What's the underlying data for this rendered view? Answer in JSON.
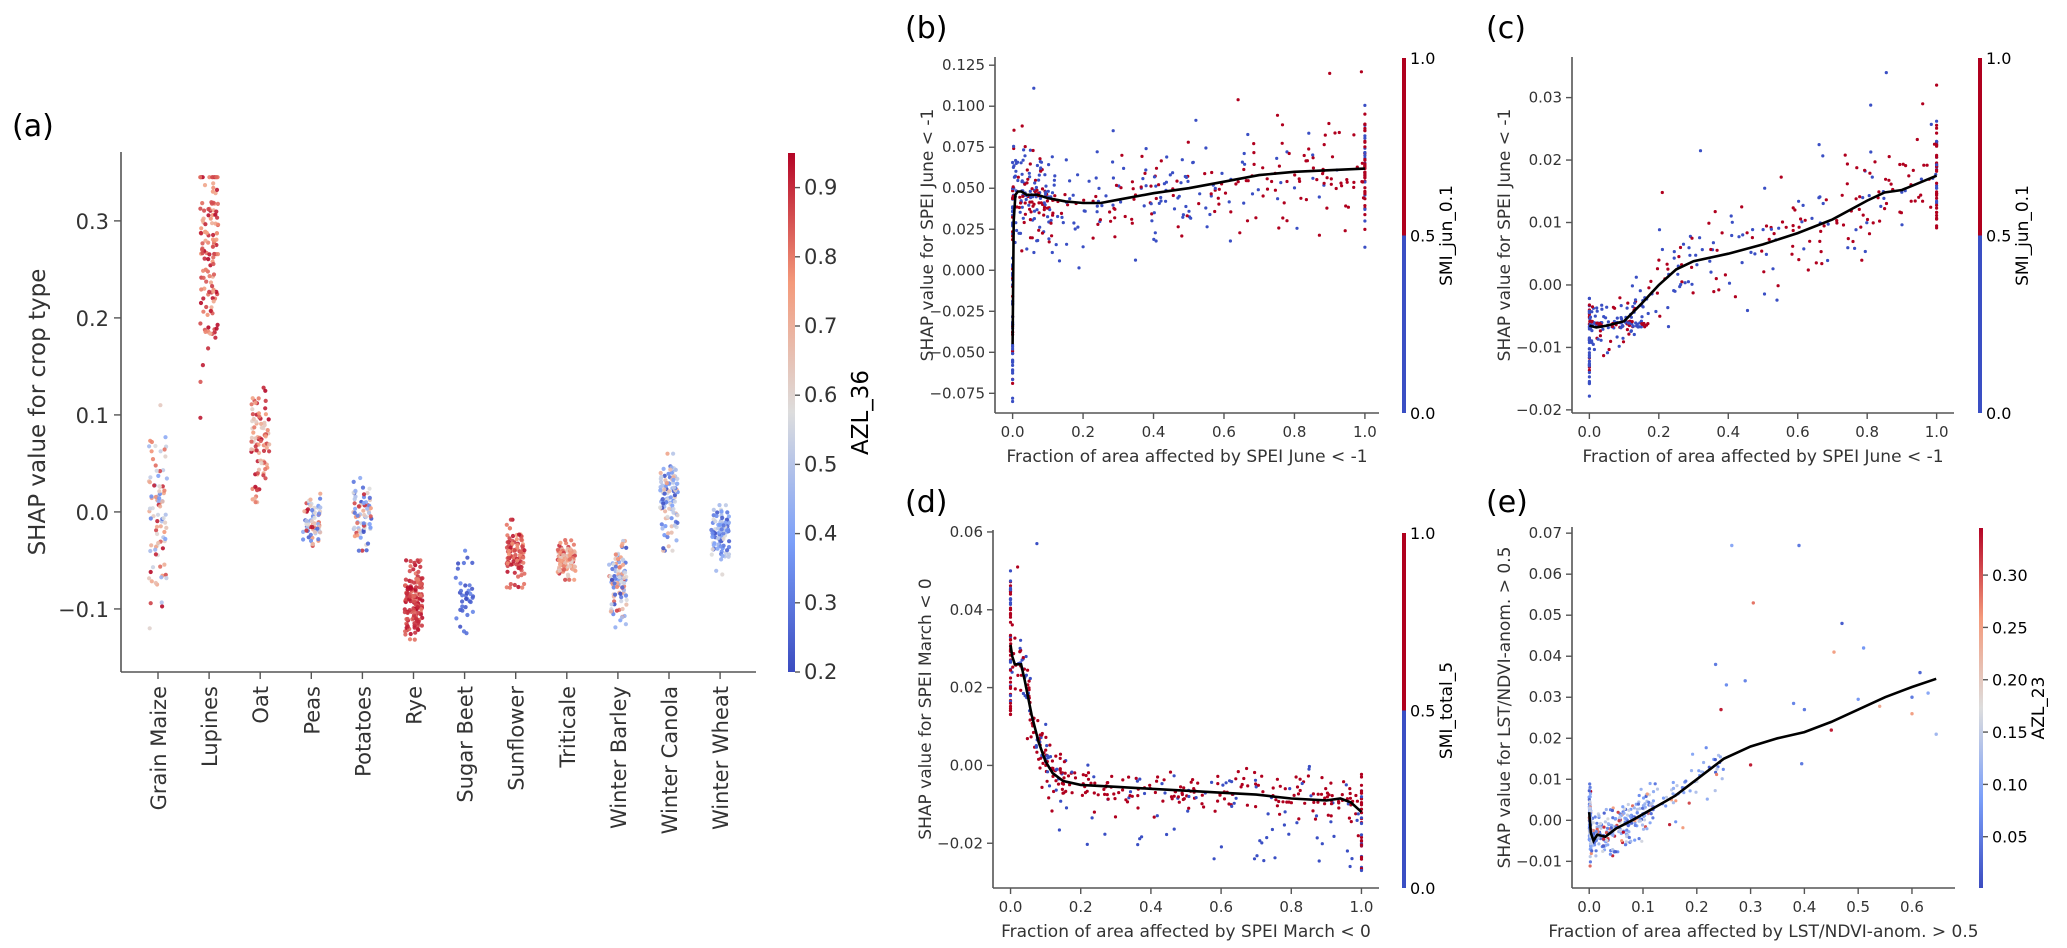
{
  "figure": {
    "panels": [
      "(a)",
      "(b)",
      "(c)",
      "(d)",
      "(e)"
    ]
  },
  "chart_data": [
    {
      "id": "a",
      "type": "scatter",
      "subtype": "categorical-strip",
      "panel_label": "(a)",
      "title": "",
      "xlabel": "",
      "ylabel": "SHAP value for crop type",
      "ylim": [
        -0.165,
        0.371
      ],
      "yticks": [
        -0.1,
        0.0,
        0.1,
        0.2,
        0.3
      ],
      "ytick_labels": [
        "−0.1",
        "0.0",
        "0.1",
        "0.2",
        "0.3"
      ],
      "categories": [
        "Grain Maize",
        "Lupines",
        "Oat",
        "Peas",
        "Potatoes",
        "Rye",
        "Sugar Beet",
        "Sunflower",
        "Triticale",
        "Winter Barley",
        "Winter Canola",
        "Winter Wheat"
      ],
      "series": [
        {
          "category": "Grain Maize",
          "n": 90,
          "min": -0.12,
          "max": 0.11,
          "center": 0.0,
          "color_range": [
            0.25,
            0.95
          ]
        },
        {
          "category": "Lupines",
          "n": 130,
          "min": 0.097,
          "max": 0.345,
          "center": 0.27,
          "color_range": [
            0.7,
            0.95
          ]
        },
        {
          "category": "Oat",
          "n": 90,
          "min": 0.01,
          "max": 0.128,
          "center": 0.07,
          "color_range": [
            0.6,
            0.95
          ]
        },
        {
          "category": "Peas",
          "n": 70,
          "min": -0.035,
          "max": 0.02,
          "center": -0.01,
          "color_range": [
            0.2,
            0.95
          ]
        },
        {
          "category": "Potatoes",
          "n": 70,
          "min": -0.04,
          "max": 0.035,
          "center": -0.005,
          "color_range": [
            0.2,
            0.95
          ]
        },
        {
          "category": "Rye",
          "n": 150,
          "min": -0.14,
          "max": -0.05,
          "center": -0.09,
          "color_range": [
            0.8,
            0.95
          ]
        },
        {
          "category": "Sugar Beet",
          "n": 35,
          "min": -0.125,
          "max": -0.04,
          "center": -0.08,
          "color_range": [
            0.2,
            0.35
          ]
        },
        {
          "category": "Sunflower",
          "n": 100,
          "min": -0.078,
          "max": -0.008,
          "center": -0.045,
          "color_range": [
            0.75,
            0.95
          ]
        },
        {
          "category": "Triticale",
          "n": 110,
          "min": -0.07,
          "max": -0.028,
          "center": -0.05,
          "color_range": [
            0.6,
            0.9
          ]
        },
        {
          "category": "Winter Barley",
          "n": 100,
          "min": -0.12,
          "max": -0.03,
          "center": -0.07,
          "color_range": [
            0.2,
            0.9
          ]
        },
        {
          "category": "Winter Canola",
          "n": 110,
          "min": -0.04,
          "max": 0.06,
          "center": 0.015,
          "color_range": [
            0.2,
            0.75
          ]
        },
        {
          "category": "Winter Wheat",
          "n": 90,
          "min": -0.065,
          "max": 0.01,
          "center": -0.02,
          "color_range": [
            0.2,
            0.6
          ]
        }
      ],
      "colorbar": {
        "label": "AZL_36",
        "range": [
          0.2,
          0.95
        ],
        "ticks": [
          0.2,
          0.3,
          0.4,
          0.5,
          0.6,
          0.7,
          0.8,
          0.9
        ],
        "tick_labels": [
          "0.2",
          "0.3",
          "0.4",
          "0.5",
          "0.6",
          "0.7",
          "0.8",
          "0.9"
        ],
        "colormap": "coolwarm",
        "colors": {
          "low": "#3b4cc0",
          "mid": "#dddddd",
          "high": "#b40426"
        }
      }
    },
    {
      "id": "b",
      "type": "scatter",
      "panel_label": "(b)",
      "xlabel": "Fraction of area affected by SPEI June < -1",
      "ylabel": "SHAP value for SPEI June < -1",
      "xlim": [
        -0.05,
        1.04
      ],
      "ylim": [
        -0.087,
        0.13
      ],
      "xticks": [
        0.0,
        0.2,
        0.4,
        0.6,
        0.8,
        1.0
      ],
      "xtick_labels": [
        "0.0",
        "0.2",
        "0.4",
        "0.6",
        "0.8",
        "1.0"
      ],
      "yticks": [
        -0.075,
        -0.05,
        -0.025,
        0.0,
        0.025,
        0.05,
        0.075,
        0.1,
        0.125
      ],
      "ytick_labels": [
        "−0.075",
        "−0.050",
        "−0.025",
        "0.000",
        "0.025",
        "0.050",
        "0.075",
        "0.100",
        "0.125"
      ],
      "trend": {
        "x": [
          0.0,
          0.003,
          0.008,
          0.015,
          0.025,
          0.04,
          0.07,
          0.1,
          0.15,
          0.2,
          0.25,
          0.3,
          0.4,
          0.5,
          0.6,
          0.7,
          0.8,
          0.9,
          1.0
        ],
        "y": [
          -0.045,
          0.03,
          0.046,
          0.048,
          0.048,
          0.046,
          0.046,
          0.044,
          0.042,
          0.041,
          0.041,
          0.043,
          0.047,
          0.05,
          0.054,
          0.058,
          0.06,
          0.061,
          0.062
        ]
      },
      "scatter_summary": {
        "n": 520,
        "spread": 0.02,
        "outliers": [
          [
            0.06,
            0.111,
            0
          ],
          [
            0.9,
            0.12,
            1
          ],
          [
            0.99,
            0.121,
            1
          ],
          [
            0.64,
            0.104,
            1
          ],
          [
            0.0,
            -0.078,
            0
          ],
          [
            0.0,
            -0.08,
            0
          ]
        ]
      },
      "colorbar": {
        "label": "SMI_jun_0.1",
        "range": [
          0.0,
          1.0
        ],
        "ticks": [
          0.0,
          0.5,
          1.0
        ],
        "tick_labels": [
          "0.0",
          "0.5",
          "1.0"
        ],
        "colors": {
          "low": "#3a4fc4",
          "high": "#b0001e"
        },
        "type": "binary"
      }
    },
    {
      "id": "c",
      "type": "scatter",
      "panel_label": "(c)",
      "xlabel": "Fraction of area affected by SPEI June < -1",
      "ylabel": "SHAP value for SPEI June < -1",
      "xlim": [
        -0.05,
        1.05
      ],
      "ylim": [
        -0.0205,
        0.0365
      ],
      "xticks": [
        0.0,
        0.2,
        0.4,
        0.6,
        0.8,
        1.0
      ],
      "xtick_labels": [
        "0.0",
        "0.2",
        "0.4",
        "0.6",
        "0.8",
        "1.0"
      ],
      "yticks": [
        -0.02,
        -0.01,
        0.0,
        0.01,
        0.02,
        0.03
      ],
      "ytick_labels": [
        "−0.02",
        "−0.01",
        "0.00",
        "0.01",
        "0.02",
        "0.03"
      ],
      "trend": {
        "x": [
          0.0,
          0.02,
          0.05,
          0.1,
          0.15,
          0.2,
          0.25,
          0.3,
          0.4,
          0.5,
          0.6,
          0.7,
          0.8,
          0.85,
          0.9,
          1.0
        ],
        "y": [
          -0.0065,
          -0.0068,
          -0.0065,
          -0.0058,
          -0.003,
          0.0,
          0.0025,
          0.0038,
          0.005,
          0.0065,
          0.0083,
          0.0105,
          0.0135,
          0.0148,
          0.0152,
          0.0175
        ]
      },
      "scatter_summary": {
        "n": 420,
        "spread": 0.005,
        "outliers": [
          [
            0.855,
            0.034,
            0
          ],
          [
            0.81,
            0.0288,
            0
          ],
          [
            1.0,
            0.032,
            1
          ],
          [
            0.96,
            0.029,
            1
          ],
          [
            0.0,
            -0.0178,
            0
          ],
          [
            0.21,
            0.0148,
            1
          ],
          [
            0.32,
            0.0215,
            0
          ]
        ]
      },
      "colorbar": {
        "label": "SMI_jun_0.1",
        "range": [
          0.0,
          1.0
        ],
        "ticks": [
          0.0,
          0.5,
          1.0
        ],
        "tick_labels": [
          "0.0",
          "0.5",
          "1.0"
        ],
        "colors": {
          "low": "#3a4fc4",
          "high": "#b0001e"
        },
        "type": "binary"
      }
    },
    {
      "id": "d",
      "type": "scatter",
      "panel_label": "(d)",
      "xlabel": "Fraction of area affected by SPEI March < 0",
      "ylabel": "SHAP value for SPEI March < 0",
      "xlim": [
        -0.05,
        1.05
      ],
      "ylim": [
        -0.0315,
        0.0605
      ],
      "xticks": [
        0.0,
        0.2,
        0.4,
        0.6,
        0.8,
        1.0
      ],
      "xtick_labels": [
        "0.0",
        "0.2",
        "0.4",
        "0.6",
        "0.8",
        "1.0"
      ],
      "yticks": [
        -0.02,
        0.0,
        0.02,
        0.04,
        0.06
      ],
      "ytick_labels": [
        "−0.02",
        "0.00",
        "0.02",
        "0.04",
        "0.06"
      ],
      "trend": {
        "x": [
          0.0,
          0.005,
          0.012,
          0.02,
          0.03,
          0.04,
          0.06,
          0.08,
          0.1,
          0.12,
          0.15,
          0.2,
          0.3,
          0.4,
          0.5,
          0.6,
          0.7,
          0.8,
          0.9,
          0.94,
          0.97,
          1.0
        ],
        "y": [
          0.031,
          0.028,
          0.026,
          0.026,
          0.026,
          0.022,
          0.013,
          0.006,
          0.001,
          -0.002,
          -0.004,
          -0.005,
          -0.0055,
          -0.006,
          -0.0065,
          -0.007,
          -0.0075,
          -0.0085,
          -0.009,
          -0.0085,
          -0.0095,
          -0.012
        ]
      },
      "scatter_summary": {
        "n": 460,
        "spread": 0.003,
        "outliers": [
          [
            0.075,
            0.057,
            0
          ],
          [
            0.02,
            0.051,
            1
          ],
          [
            0.0,
            0.05,
            0
          ],
          [
            0.58,
            -0.024,
            0
          ],
          [
            1.0,
            -0.027,
            0
          ],
          [
            0.96,
            -0.022,
            0
          ]
        ]
      },
      "colorbar": {
        "label": "SMI_total_5",
        "range": [
          0.0,
          1.0
        ],
        "ticks": [
          0.0,
          0.5,
          1.0
        ],
        "tick_labels": [
          "0.0",
          "0.5",
          "1.0"
        ],
        "colors": {
          "low": "#3a4fc4",
          "high": "#b0001e"
        },
        "type": "binary"
      }
    },
    {
      "id": "e",
      "type": "scatter",
      "panel_label": "(e)",
      "xlabel": "Fraction of area affected by LST/NDVI-anom. > 0.5",
      "ylabel": "SHAP value for LST/NDVI-anom. > 0.5",
      "xlim": [
        -0.032,
        0.68
      ],
      "ylim": [
        -0.0165,
        0.0715
      ],
      "xticks": [
        0.0,
        0.1,
        0.2,
        0.3,
        0.4,
        0.5,
        0.6
      ],
      "xtick_labels": [
        "0.0",
        "0.1",
        "0.2",
        "0.3",
        "0.4",
        "0.5",
        "0.6"
      ],
      "yticks": [
        -0.01,
        0.0,
        0.01,
        0.02,
        0.03,
        0.04,
        0.05,
        0.06,
        0.07
      ],
      "ytick_labels": [
        "−0.01",
        "0.00",
        "0.01",
        "0.02",
        "0.03",
        "0.04",
        "0.05",
        "0.06",
        "0.07"
      ],
      "trend": {
        "x": [
          0.0,
          0.003,
          0.008,
          0.015,
          0.03,
          0.05,
          0.08,
          0.12,
          0.16,
          0.2,
          0.25,
          0.3,
          0.35,
          0.4,
          0.45,
          0.5,
          0.55,
          0.6,
          0.645
        ],
        "y": [
          0.002,
          -0.003,
          -0.005,
          -0.0035,
          -0.004,
          -0.002,
          0.0,
          0.003,
          0.006,
          0.01,
          0.015,
          0.018,
          0.02,
          0.0215,
          0.024,
          0.027,
          0.03,
          0.0325,
          0.0345
        ]
      },
      "scatter_summary": {
        "n": 380,
        "outliers": [
          [
            0.265,
            0.067,
            0.1
          ],
          [
            0.39,
            0.067,
            0.05
          ],
          [
            0.305,
            0.053,
            0.28
          ],
          [
            0.47,
            0.048,
            0.02
          ],
          [
            0.51,
            0.042,
            0.08
          ],
          [
            0.455,
            0.041,
            0.25
          ],
          [
            0.235,
            0.038,
            0.05
          ],
          [
            0.615,
            0.036,
            0.03
          ],
          [
            0.29,
            0.034,
            0.06
          ],
          [
            0.255,
            0.033,
            0.07
          ],
          [
            0.6,
            0.03,
            0.05
          ],
          [
            0.63,
            0.031,
            0.1
          ],
          [
            0.645,
            0.021,
            0.12
          ],
          [
            0.6,
            0.026,
            0.25
          ],
          [
            0.45,
            0.022,
            0.33
          ],
          [
            0.245,
            0.027,
            0.33
          ],
          [
            0.3,
            0.0135,
            0.33
          ],
          [
            0.4,
            0.027,
            0.05
          ],
          [
            0.38,
            0.0285,
            0.06
          ],
          [
            0.395,
            0.0138,
            0.05
          ],
          [
            0.5,
            0.0295,
            0.08
          ],
          [
            0.54,
            0.0278,
            0.24
          ]
        ]
      },
      "colorbar": {
        "label": "AZL_23",
        "range": [
          0.001,
          0.345
        ],
        "ticks": [
          0.05,
          0.1,
          0.15,
          0.2,
          0.25,
          0.3
        ],
        "tick_labels": [
          "0.05",
          "0.10",
          "0.15",
          "0.20",
          "0.25",
          "0.30"
        ],
        "colormap": "coolwarm",
        "colors": {
          "low": "#3b4cc0",
          "mid": "#dddddd",
          "high": "#b40426"
        }
      }
    }
  ]
}
